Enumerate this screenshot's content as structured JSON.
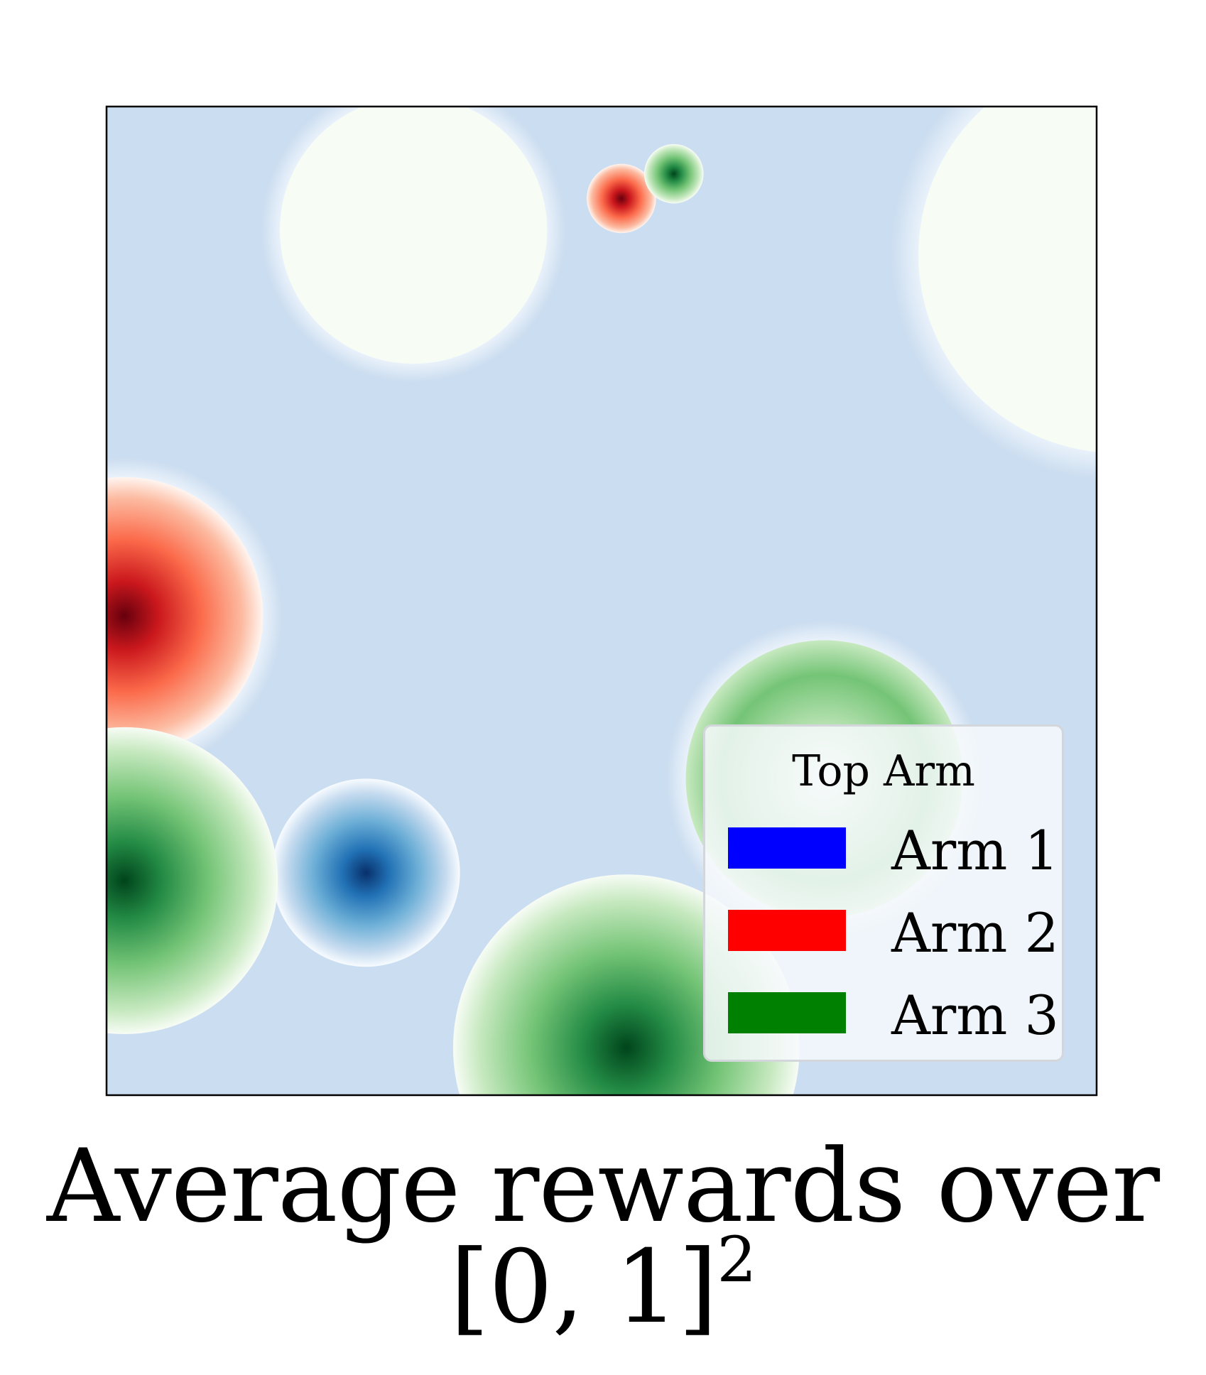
{
  "figure": {
    "caption_text": "Average rewards over [0, 1]",
    "caption_exponent": "2"
  },
  "legend": {
    "title": "Top Arm",
    "location": "lower right",
    "entries": [
      {
        "label": "Arm 1",
        "color": "#0000ff"
      },
      {
        "label": "Arm 2",
        "color": "#ff0000"
      },
      {
        "label": "Arm 3",
        "color": "#008000"
      }
    ]
  },
  "colors": {
    "background_field": "#cbddf0",
    "blue_colormap": [
      "#f7fbff",
      "#c6dbef",
      "#6baed6",
      "#2171b5",
      "#08306b"
    ],
    "red_colormap": [
      "#fff5f0",
      "#fcbba1",
      "#fb6a4a",
      "#cb181d",
      "#67000d"
    ],
    "green_colormap": [
      "#f7fcf5",
      "#c7e9c0",
      "#74c476",
      "#238b45",
      "#00441b"
    ]
  },
  "chart_data": {
    "type": "heatmap",
    "description_of_axes": "unit square [0,1] x [0,1], no ticks shown",
    "xlim": [
      0,
      1
    ],
    "ylim": [
      0,
      1
    ],
    "grid": false,
    "bumps": [
      {
        "arm": "Arm 1",
        "cx": 0.262,
        "cy": 0.225,
        "radius": 0.095,
        "peak": 1.0,
        "palette": "blue_colormap",
        "halo": false
      },
      {
        "arm": "Arm 2",
        "cx": 0.018,
        "cy": 0.485,
        "radius": 0.14,
        "peak": 1.0,
        "palette": "red_colormap",
        "halo": true
      },
      {
        "arm": "Arm 2",
        "cx": 0.52,
        "cy": 0.907,
        "radius": 0.035,
        "peak": 1.0,
        "palette": "red_colormap",
        "halo": false
      },
      {
        "arm": "Arm 3",
        "cx": 0.573,
        "cy": 0.932,
        "radius": 0.03,
        "peak": 1.0,
        "palette": "green_colormap",
        "halo": false
      },
      {
        "arm": "Arm 3",
        "cx": 0.018,
        "cy": 0.217,
        "radius": 0.155,
        "peak": 1.0,
        "palette": "green_colormap",
        "halo": false
      },
      {
        "arm": "Arm 3",
        "cx": 0.525,
        "cy": 0.048,
        "radius": 0.175,
        "peak": 1.0,
        "palette": "green_colormap",
        "halo": false
      },
      {
        "arm": "Arm 3",
        "cx": 0.725,
        "cy": 0.32,
        "radius": 0.14,
        "peak": 0.5,
        "palette": "green_colormap",
        "halo": true
      },
      {
        "arm": "Arm 1",
        "cx": 0.31,
        "cy": 0.875,
        "radius": 0.135,
        "peak": 0.0,
        "palette": "blue_colormap",
        "halo": true
      },
      {
        "arm": "Arm 1",
        "cx": 1.02,
        "cy": 0.85,
        "radius": 0.2,
        "peak": 0.0,
        "palette": "blue_colormap",
        "halo": true
      }
    ]
  }
}
